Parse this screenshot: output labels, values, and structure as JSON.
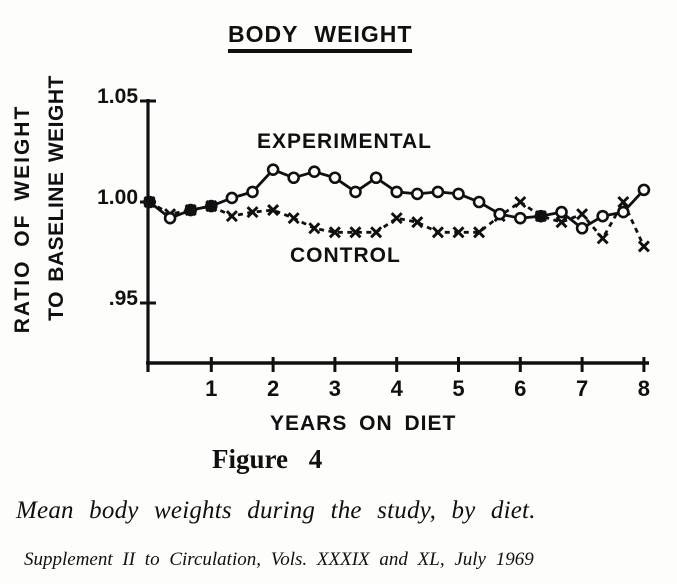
{
  "title": "BODY WEIGHT",
  "y_axis": {
    "label_line1": "RATIO OF WEIGHT",
    "label_line2": "TO BASELINE WEIGHT"
  },
  "x_axis": {
    "label": "YEARS ON DIET"
  },
  "series_labels": {
    "experimental": "EXPERIMENTAL",
    "control": "CONTROL"
  },
  "caption": {
    "figure": "Figure 4",
    "description": "Mean body weights during the study, by diet.",
    "source": "Supplement II to Circulation, Vols. XXXIX and XL, July 1969"
  },
  "colors": {
    "ink": "#101010",
    "background": "#fdfdfb"
  },
  "chart_data": {
    "type": "line",
    "title": "BODY WEIGHT",
    "xlabel": "YEARS ON DIET",
    "ylabel": "RATIO OF WEIGHT TO BASELINE WEIGHT",
    "xlim": [
      0,
      8.1
    ],
    "ylim": [
      0.92,
      1.052
    ],
    "grid": false,
    "legend_position": "inline-labels",
    "x_ticks": [
      {
        "value": 1,
        "label": "1"
      },
      {
        "value": 2,
        "label": "2"
      },
      {
        "value": 3,
        "label": "3"
      },
      {
        "value": 4,
        "label": "4"
      },
      {
        "value": 5,
        "label": "5"
      },
      {
        "value": 6,
        "label": "6"
      },
      {
        "value": 7,
        "label": "7"
      },
      {
        "value": 8,
        "label": "8"
      }
    ],
    "y_ticks": [
      {
        "value": 1.05,
        "label": "1.05"
      },
      {
        "value": 1.0,
        "label": "1.00"
      },
      {
        "value": 0.95,
        "label": ".95"
      }
    ],
    "x": [
      0,
      0.333,
      0.667,
      1,
      1.333,
      1.667,
      2,
      2.333,
      2.667,
      3,
      3.333,
      3.667,
      4,
      4.333,
      4.667,
      5,
      5.333,
      5.667,
      6,
      6.333,
      6.667,
      7,
      7.333,
      7.667,
      8
    ],
    "series": [
      {
        "name": "EXPERIMENTAL",
        "marker": "circle",
        "line": "solid",
        "values": [
          1.0,
          0.992,
          0.996,
          0.998,
          1.002,
          1.005,
          1.016,
          1.012,
          1.015,
          1.012,
          1.005,
          1.012,
          1.005,
          1.004,
          1.005,
          1.004,
          1.0,
          0.994,
          0.992,
          0.993,
          0.995,
          0.987,
          0.993,
          0.995,
          1.006
        ]
      },
      {
        "name": "CONTROL",
        "marker": "x",
        "line": "dashed",
        "values": [
          1.0,
          0.994,
          0.996,
          0.998,
          0.993,
          0.995,
          0.996,
          0.992,
          0.987,
          0.985,
          0.985,
          0.985,
          0.992,
          0.99,
          0.985,
          0.985,
          0.985,
          0.993,
          1.0,
          0.993,
          0.99,
          0.994,
          0.982,
          1.0,
          0.978
        ]
      }
    ]
  }
}
